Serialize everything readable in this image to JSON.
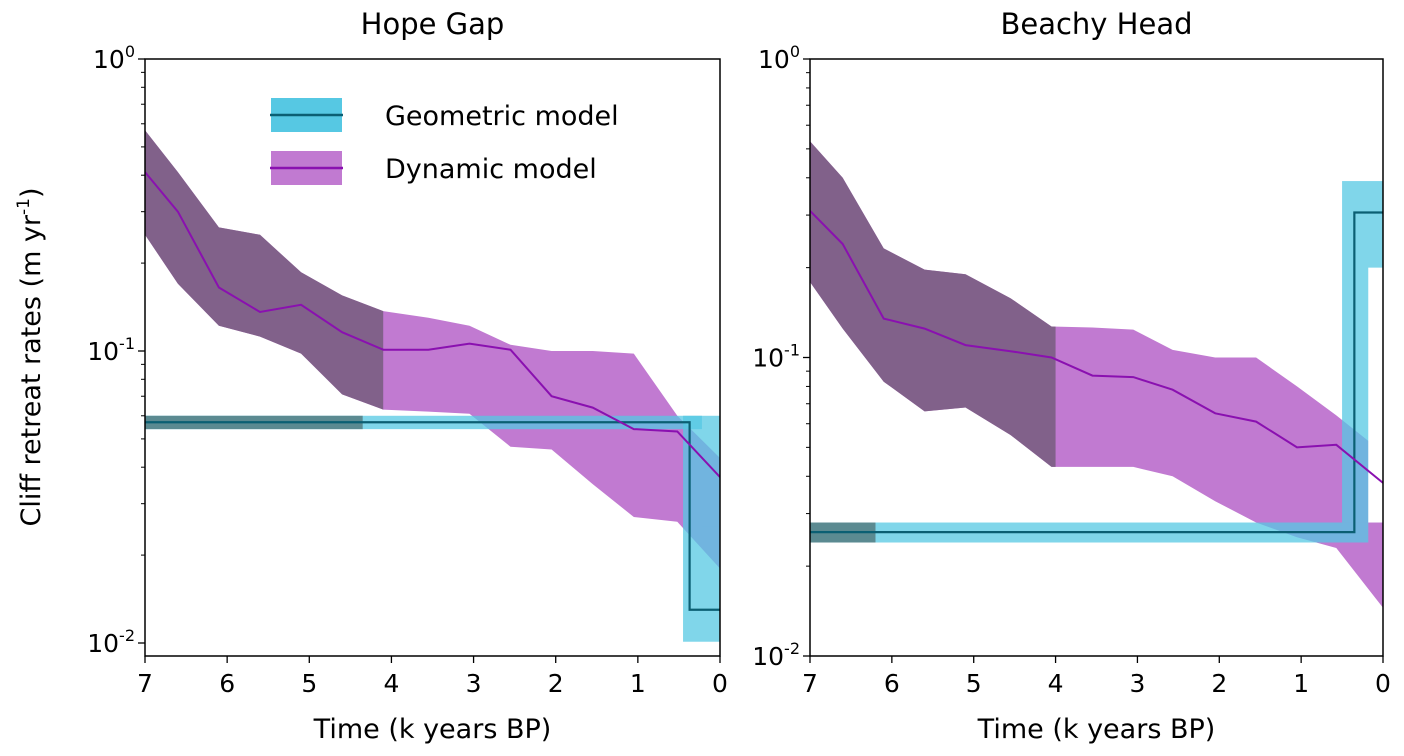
{
  "figure": {
    "ylabel": "Cliff retreat rates (m yr",
    "ylabel_sup": "-1",
    "ylabel_close": ")"
  },
  "legend": {
    "items": [
      {
        "label": "Geometric model",
        "series": "geometric"
      },
      {
        "label": "Dynamic model",
        "series": "dynamic"
      }
    ]
  },
  "colors": {
    "geometric_band": "#56c8e3",
    "geometric_line": "#0b5f73",
    "geometric_band_dark": "#5b8a91",
    "dynamic_band": "#c17ad1",
    "dynamic_line": "#8a10b0",
    "dynamic_band_dark": "#81618a"
  },
  "chart_data": [
    {
      "type": "line",
      "title": "Hope Gap",
      "xlabel": "Time (k years BP)",
      "ylabel": "Cliff retreat rates (m yr-1)",
      "xlim": [
        7,
        0
      ],
      "ylim": [
        0.01,
        1
      ],
      "yscale": "log",
      "xticks": [
        7,
        6,
        5,
        4,
        3,
        2,
        1,
        0
      ],
      "yticks": [
        {
          "value": 1,
          "base": "10",
          "exp": "0"
        },
        {
          "value": 0.1,
          "base": "10",
          "exp": "-1"
        },
        {
          "value": 0.01,
          "base": "10",
          "exp": "-2"
        }
      ],
      "legend_position": "upper-center",
      "grid": false,
      "series": [
        {
          "name": "Dynamic model",
          "key": "dynamic",
          "dark_until_x": 4.1,
          "x": [
            7.0,
            6.6,
            6.1,
            5.6,
            5.1,
            4.6,
            4.1,
            3.55,
            3.05,
            2.55,
            2.05,
            1.55,
            1.05,
            0.52,
            0.0
          ],
          "median": [
            0.41,
            0.3,
            0.165,
            0.136,
            0.144,
            0.116,
            0.101,
            0.101,
            0.106,
            0.101,
            0.07,
            0.064,
            0.054,
            0.053,
            0.037
          ],
          "upper": [
            0.57,
            0.41,
            0.265,
            0.25,
            0.186,
            0.155,
            0.137,
            0.13,
            0.122,
            0.105,
            0.1,
            0.1,
            0.098,
            0.06,
            0.043
          ],
          "lower": [
            0.25,
            0.17,
            0.122,
            0.112,
            0.098,
            0.071,
            0.063,
            0.062,
            0.061,
            0.047,
            0.046,
            0.035,
            0.027,
            0.026,
            0.018
          ],
          "tail_band": {
            "x": [
              0.22,
              0.0
            ],
            "lower": 0.025
          }
        },
        {
          "name": "Geometric model",
          "key": "geometric",
          "dark_until_x": 4.35,
          "steps": [
            {
              "x_start": 7.0,
              "x_end": 0.37,
              "value": 0.057,
              "band_low": 0.054,
              "band_high": 0.06,
              "band_x_end": 0.22
            },
            {
              "x_start": 0.37,
              "x_end": 0.0,
              "value": 0.013,
              "band_low": 0.0101,
              "band_high": 0.06,
              "band_x_start": 0.45
            }
          ]
        }
      ]
    },
    {
      "type": "line",
      "title": "Beachy Head",
      "xlabel": "Time (k years BP)",
      "ylabel": "",
      "xlim": [
        7,
        0
      ],
      "ylim": [
        0.01,
        1
      ],
      "yscale": "log",
      "xticks": [
        7,
        6,
        5,
        4,
        3,
        2,
        1,
        0
      ],
      "yticks": [
        {
          "value": 1,
          "base": "10",
          "exp": "0"
        },
        {
          "value": 0.1,
          "base": "10",
          "exp": "-1"
        },
        {
          "value": 0.01,
          "base": "10",
          "exp": "-2"
        }
      ],
      "grid": false,
      "series": [
        {
          "name": "Dynamic model",
          "key": "dynamic",
          "dark_until_x": 4.0,
          "x": [
            7.0,
            6.6,
            6.1,
            5.6,
            5.1,
            4.55,
            4.05,
            3.55,
            3.05,
            2.57,
            2.05,
            1.55,
            1.05,
            0.57,
            0.0
          ],
          "median": [
            0.31,
            0.24,
            0.135,
            0.125,
            0.11,
            0.105,
            0.1,
            0.087,
            0.086,
            0.078,
            0.065,
            0.061,
            0.05,
            0.051,
            0.038
          ],
          "upper": [
            0.53,
            0.4,
            0.232,
            0.197,
            0.19,
            0.158,
            0.127,
            0.126,
            0.124,
            0.106,
            0.1,
            0.1,
            0.08,
            0.064,
            0.048
          ],
          "lower": [
            0.179,
            0.125,
            0.083,
            0.066,
            0.068,
            0.055,
            0.043,
            0.043,
            0.043,
            0.04,
            0.033,
            0.028,
            0.025,
            0.023,
            0.0145
          ]
        },
        {
          "name": "Geometric model",
          "key": "geometric",
          "dark_until_x": 6.2,
          "steps": [
            {
              "x_start": 7.0,
              "x_end": 0.35,
              "value": 0.026,
              "band_low": 0.024,
              "band_high": 0.028,
              "band_x_end": 0.18
            },
            {
              "x_start": 0.35,
              "x_end": 0.0,
              "value": 0.306,
              "band_low": 0.028,
              "band_high": 0.39,
              "band_x_start": 0.5,
              "inner_gap_x_start": 0.18,
              "inner_gap_high": 0.2
            }
          ]
        }
      ]
    }
  ]
}
